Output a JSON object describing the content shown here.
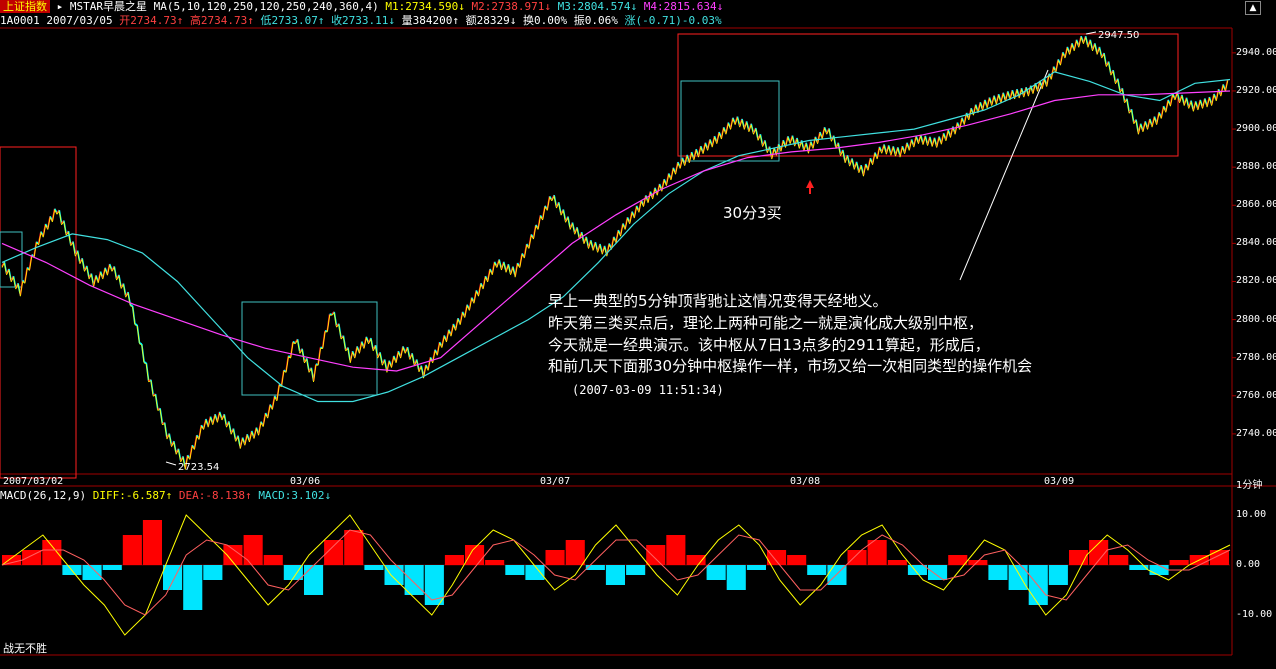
{
  "header": {
    "index_name": "上证指数",
    "indicator_name": "▸ MSTAR早晨之星",
    "ma_params": "MA(5,10,120,250,120,250,240,360,4)",
    "m1": "M1:2734.590↓",
    "m2": "M2:2738.971↓",
    "m3": "M3:2804.574↓",
    "m4": "M4:2815.634↓",
    "code": "1A0001",
    "date": "2007/03/05",
    "open": "开2734.73↑",
    "high": "高2734.73↑",
    "low": "低2733.07↑",
    "close": "收2733.11↓",
    "volume": "量384200↑",
    "amount": "额28329↓",
    "turnover": "换0.00%",
    "amplitude": "振0.06%",
    "change": "涨(-0.71)-0.03%"
  },
  "macd_header": {
    "name": "MACD(26,12,9)",
    "diff": "DIFF:-6.587↑",
    "dea": "DEA:-8.138↑",
    "macd": "MACD:3.102↓"
  },
  "annotations": {
    "buy_label": "30分3买",
    "line1": "早上一典型的5分钟顶背驰让这情况变得天经地义。",
    "line2": "昨天第三类买点后，理论上两种可能之一就是演化成大级别中枢，",
    "line3": "今天就是一经典演示。该中枢从7日13点多的2911算起，形成后，",
    "line4": "和前几天下面那30分钟中枢操作一样，市场又给一次相同类型的操作机会",
    "timestamp": "(2007-03-09 11:51:34)",
    "high_mark": "2947.50",
    "low_mark": "2723.54"
  },
  "period_label": "1分钟",
  "footer_text": "战无不胜",
  "colors": {
    "up": "#ff2020",
    "down": "#00ffff",
    "ma_short": "#ffff00",
    "ma_cyan": "#40e0e0",
    "ma_magenta": "#ff40ff",
    "box_red": "#ff2020",
    "box_cyan": "#40c0c0",
    "macd_pos": "#ff0000",
    "macd_neg": "#00e5ff"
  },
  "chart_data": {
    "type": "line",
    "title": "上证指数 1分钟 K线",
    "x_ticks": [
      "2007/03/02",
      "03/06",
      "03/07",
      "03/08",
      "03/09"
    ],
    "y_ticks": [
      2740,
      2760,
      2780,
      2800,
      2820,
      2840,
      2860,
      2880,
      2900,
      2920,
      2940
    ],
    "ylim": [
      2720,
      2952
    ],
    "macd_y_ticks": [
      "10.00",
      "0.00",
      "-10.00"
    ],
    "macd_ylim": [
      -17,
      13
    ],
    "price_series": [
      2830,
      2815,
      2842,
      2858,
      2836,
      2820,
      2828,
      2810,
      2770,
      2740,
      2724,
      2745,
      2750,
      2735,
      2742,
      2760,
      2790,
      2770,
      2805,
      2780,
      2790,
      2775,
      2785,
      2772,
      2788,
      2800,
      2815,
      2830,
      2825,
      2845,
      2865,
      2850,
      2840,
      2836,
      2850,
      2862,
      2870,
      2882,
      2888,
      2895,
      2905,
      2900,
      2887,
      2895,
      2890,
      2900,
      2885,
      2878,
      2890,
      2888,
      2895,
      2893,
      2900,
      2910,
      2915,
      2918,
      2920,
      2925,
      2940,
      2947.5,
      2940,
      2922,
      2900,
      2905,
      2918,
      2912,
      2915,
      2925
    ],
    "ma_cyan_series": [
      2830,
      2838,
      2845,
      2842,
      2835,
      2820,
      2800,
      2780,
      2765,
      2757,
      2757,
      2762,
      2770,
      2780,
      2790,
      2800,
      2812,
      2830,
      2850,
      2866,
      2878,
      2886,
      2890,
      2894,
      2896,
      2898,
      2900,
      2905,
      2910,
      2918,
      2930,
      2925,
      2918,
      2915,
      2924,
      2926
    ],
    "ma_magenta_series": [
      2840,
      2830,
      2818,
      2808,
      2800,
      2792,
      2785,
      2780,
      2775,
      2773,
      2780,
      2800,
      2820,
      2840,
      2855,
      2868,
      2878,
      2885,
      2888,
      2890,
      2893,
      2897,
      2902,
      2908,
      2915,
      2918,
      2918,
      2919,
      2920
    ],
    "macd_hist": [
      2,
      3,
      5,
      -2,
      -3,
      -1,
      6,
      9,
      -5,
      -9,
      -3,
      4,
      6,
      2,
      -3,
      -6,
      5,
      7,
      -1,
      -4,
      -6,
      -8,
      2,
      4,
      1,
      -2,
      -3,
      3,
      5,
      -1,
      -4,
      -2,
      4,
      6,
      2,
      -3,
      -5,
      -1,
      3,
      2,
      -2,
      -4,
      3,
      5,
      1,
      -2,
      -3,
      2,
      1,
      -3,
      -5,
      -8,
      -4,
      3,
      5,
      2,
      -1,
      -2,
      1,
      2,
      3
    ],
    "macd_diff": [
      0,
      3,
      6,
      1,
      -4,
      -8,
      -14,
      -10,
      0,
      10,
      6,
      2,
      -3,
      -8,
      -4,
      2,
      6,
      10,
      4,
      -2,
      -6,
      -10,
      -4,
      3,
      7,
      5,
      0,
      -5,
      -2,
      4,
      8,
      3,
      -2,
      -6,
      0,
      5,
      8,
      4,
      -3,
      -8,
      -4,
      2,
      6,
      8,
      2,
      -3,
      -5,
      0,
      5,
      3,
      -4,
      -10,
      -6,
      2,
      6,
      3,
      -1,
      -3,
      0,
      2,
      4
    ],
    "macd_dea": [
      0,
      1,
      3,
      3,
      1,
      -3,
      -8,
      -10,
      -6,
      2,
      5,
      4,
      1,
      -4,
      -5,
      -1,
      3,
      7,
      6,
      1,
      -3,
      -7,
      -6,
      -1,
      4,
      5,
      2,
      -2,
      -3,
      1,
      5,
      5,
      1,
      -3,
      -2,
      2,
      6,
      5,
      0,
      -5,
      -5,
      -1,
      3,
      6,
      4,
      0,
      -3,
      -2,
      2,
      3,
      -1,
      -6,
      -7,
      -2,
      3,
      4,
      1,
      -1,
      -1,
      1,
      3
    ]
  }
}
